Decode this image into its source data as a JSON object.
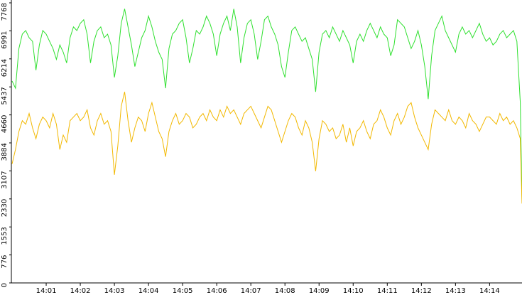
{
  "chart_data": {
    "type": "line",
    "x": [
      0,
      0.1,
      0.2,
      0.3,
      0.4,
      0.5,
      0.6,
      0.7,
      0.8,
      0.9,
      1,
      1.1,
      1.2,
      1.3,
      1.4,
      1.5,
      1.6,
      1.7,
      1.8,
      1.9,
      2,
      2.1,
      2.2,
      2.3,
      2.4,
      2.5,
      2.6,
      2.7,
      2.8,
      2.9,
      3,
      3.1,
      3.2,
      3.3,
      3.4,
      3.5,
      3.6,
      3.7,
      3.8,
      3.9,
      4,
      4.1,
      4.2,
      4.3,
      4.4,
      4.5,
      4.6,
      4.7,
      4.8,
      4.9,
      5,
      5.1,
      5.2,
      5.3,
      5.4,
      5.5,
      5.6,
      5.7,
      5.8,
      5.9,
      6,
      6.1,
      6.2,
      6.3,
      6.4,
      6.5,
      6.6,
      6.7,
      6.8,
      6.9,
      7,
      7.1,
      7.2,
      7.3,
      7.4,
      7.5,
      7.6,
      7.7,
      7.8,
      7.9,
      8,
      8.1,
      8.2,
      8.3,
      8.4,
      8.5,
      8.6,
      8.7,
      8.8,
      8.9,
      9,
      9.1,
      9.2,
      9.3,
      9.4,
      9.5,
      9.6,
      9.7,
      9.8,
      9.9,
      10,
      10.1,
      10.2,
      10.3,
      10.4,
      10.5,
      10.6,
      10.7,
      10.8,
      10.9,
      11,
      11.1,
      11.2,
      11.3,
      11.4,
      11.5,
      11.6,
      11.7,
      11.8,
      11.9,
      12,
      12.1,
      12.2,
      12.3,
      12.4,
      12.5,
      12.6,
      12.7,
      12.8,
      12.9,
      13,
      13.1,
      13.2,
      13.3,
      13.4,
      13.5,
      13.6,
      13.7,
      13.8,
      13.9,
      14,
      14.1,
      14.2,
      14.3,
      14.4,
      14.5,
      14.6,
      14.7,
      14.8,
      14.9,
      14.95
    ],
    "series": [
      {
        "color": "#2ee02e",
        "values": [
          5600,
          5400,
          6500,
          6900,
          7000,
          6800,
          6700,
          5900,
          6600,
          7000,
          6900,
          6700,
          6500,
          6200,
          6600,
          6400,
          6100,
          6800,
          7100,
          7000,
          7200,
          7300,
          6900,
          6100,
          6700,
          7000,
          7100,
          6800,
          6900,
          6600,
          5700,
          6300,
          7200,
          7600,
          7100,
          6600,
          6000,
          6400,
          6800,
          7000,
          7400,
          7100,
          6700,
          6400,
          6200,
          5400,
          6500,
          6900,
          7000,
          7200,
          7300,
          6800,
          6100,
          6500,
          7000,
          6900,
          7100,
          7400,
          7200,
          6900,
          6300,
          6900,
          7200,
          7400,
          7000,
          7600,
          7100,
          6100,
          6800,
          7200,
          7300,
          6900,
          6200,
          6700,
          7300,
          7400,
          7100,
          6900,
          6600,
          6000,
          5700,
          6400,
          7000,
          7100,
          6900,
          6700,
          6800,
          6500,
          6200,
          5300,
          6400,
          6900,
          7000,
          6800,
          7100,
          6900,
          6700,
          7000,
          6800,
          6600,
          6100,
          6700,
          6900,
          6700,
          7000,
          7200,
          7000,
          6800,
          7100,
          6900,
          6800,
          6300,
          6600,
          7300,
          7200,
          7100,
          6800,
          6500,
          6700,
          7000,
          6600,
          6000,
          5100,
          6300,
          7000,
          7200,
          7400,
          7000,
          6800,
          6600,
          6400,
          6900,
          7100,
          6900,
          7000,
          6800,
          7000,
          7200,
          6900,
          6700,
          6800,
          6600,
          6700,
          6900,
          7000,
          6800,
          6900,
          7000,
          6700,
          5000,
          2300
        ]
      },
      {
        "color": "#f2b800",
        "values": [
          3300,
          3700,
          4200,
          4500,
          4400,
          4700,
          4300,
          4000,
          4400,
          4600,
          4500,
          4300,
          4700,
          4400,
          3700,
          4100,
          3900,
          4500,
          4600,
          4700,
          4500,
          4600,
          4800,
          4300,
          4100,
          4500,
          4700,
          4400,
          4500,
          4200,
          3000,
          3800,
          4900,
          5300,
          4500,
          3900,
          4300,
          4600,
          4500,
          4200,
          4700,
          5000,
          4600,
          4200,
          4000,
          3500,
          4200,
          4500,
          4700,
          4400,
          4500,
          4700,
          4600,
          4300,
          4400,
          4600,
          4700,
          4500,
          4800,
          4600,
          4500,
          4800,
          4600,
          4900,
          4700,
          4800,
          4600,
          4400,
          4700,
          4800,
          4900,
          4700,
          4500,
          4300,
          4600,
          4900,
          4800,
          4500,
          4200,
          3900,
          4200,
          4500,
          4700,
          4600,
          4300,
          4100,
          4500,
          4300,
          3900,
          3100,
          4000,
          4500,
          4400,
          4200,
          4300,
          4000,
          4100,
          4400,
          3900,
          4300,
          3800,
          4200,
          4300,
          4500,
          4200,
          4000,
          4400,
          4500,
          4800,
          4600,
          4300,
          4100,
          4500,
          4700,
          4400,
          4600,
          4900,
          5000,
          4600,
          4300,
          4100,
          3900,
          3700,
          4400,
          4800,
          4700,
          4600,
          4500,
          4800,
          4500,
          4400,
          4600,
          4500,
          4300,
          4700,
          4500,
          4400,
          4200,
          4400,
          4600,
          4600,
          4500,
          4400,
          4700,
          4500,
          4600,
          4400,
          4500,
          4300,
          4000,
          2200
        ]
      }
    ],
    "xlim": [
      0,
      14.95
    ],
    "xticks": [
      {
        "value": 1,
        "label": "14:01"
      },
      {
        "value": 2,
        "label": "14:02"
      },
      {
        "value": 3,
        "label": "14:03"
      },
      {
        "value": 4,
        "label": "14:04"
      },
      {
        "value": 5,
        "label": "14:05"
      },
      {
        "value": 6,
        "label": "14:06"
      },
      {
        "value": 7,
        "label": "14:07"
      },
      {
        "value": 8,
        "label": "14:08"
      },
      {
        "value": 9,
        "label": "14:09"
      },
      {
        "value": 10,
        "label": "14:10"
      },
      {
        "value": 11,
        "label": "14:11"
      },
      {
        "value": 12,
        "label": "14:12"
      },
      {
        "value": 13,
        "label": "14:13"
      },
      {
        "value": 14,
        "label": "14:14"
      }
    ],
    "ylim": [
      0,
      7768
    ],
    "yticks": [
      0,
      776,
      1553,
      2330,
      3107,
      3884,
      4660,
      5437,
      6214,
      6991,
      7768
    ],
    "grid": false
  }
}
